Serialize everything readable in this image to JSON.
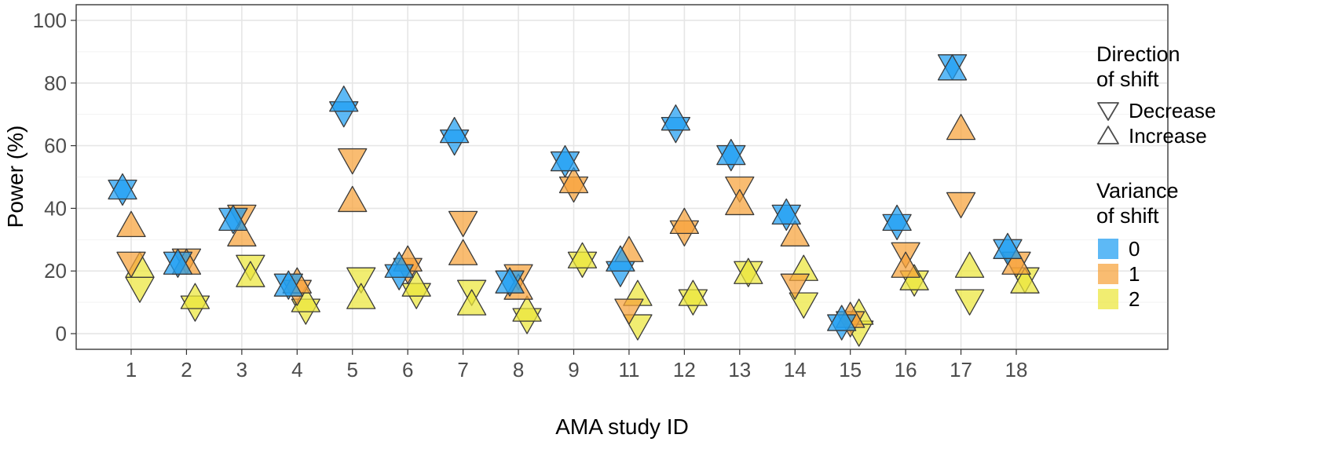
{
  "chart_data": {
    "type": "scatter",
    "xlabel": "AMA study ID",
    "ylabel": "Power (%)",
    "categories": [
      "1",
      "2",
      "3",
      "4",
      "5",
      "6",
      "7",
      "8",
      "9",
      "11",
      "12",
      "13",
      "14",
      "15",
      "16",
      "17",
      "18"
    ],
    "ylim": [
      -5,
      105
    ],
    "yticks": [
      0,
      20,
      40,
      60,
      80,
      100
    ],
    "grid": true,
    "legend_position": "right",
    "shape_legend": {
      "title": [
        "Direction",
        "of shift"
      ],
      "items": [
        {
          "label": "Decrease",
          "shape": "triangle-down"
        },
        {
          "label": "Increase",
          "shape": "triangle-up"
        }
      ]
    },
    "color_legend": {
      "title": [
        "Variance",
        "of shift"
      ],
      "items": [
        {
          "label": "0",
          "color": "#1f9ef2"
        },
        {
          "label": "1",
          "color": "#f7a23a"
        },
        {
          "label": "2",
          "color": "#ebe63a"
        }
      ]
    },
    "series": [
      {
        "variance": "0",
        "direction": "Decrease",
        "values": [
          46,
          23,
          37,
          16,
          71,
          19,
          62,
          17,
          55,
          20,
          66,
          57,
          38,
          3,
          35,
          86,
          27
        ]
      },
      {
        "variance": "0",
        "direction": "Increase",
        "values": [
          46,
          22,
          36,
          15,
          74,
          21,
          64,
          16,
          55,
          23,
          68,
          57,
          38,
          4,
          36,
          84,
          27
        ]
      },
      {
        "variance": "1",
        "direction": "Decrease",
        "values": [
          23,
          24,
          38,
          14,
          56,
          21,
          36,
          19,
          47,
          8,
          33,
          47,
          16,
          4,
          26,
          42,
          23
        ]
      },
      {
        "variance": "1",
        "direction": "Increase",
        "values": [
          34,
          22,
          31,
          16,
          42,
          23,
          25,
          14,
          48,
          26,
          35,
          41,
          31,
          5,
          21,
          65,
          22
        ]
      },
      {
        "variance": "2",
        "direction": "Decrease",
        "values": [
          15,
          9,
          22,
          8,
          18,
          13,
          14,
          5,
          23,
          3,
          11,
          20,
          10,
          1,
          17,
          11,
          18
        ]
      },
      {
        "variance": "2",
        "direction": "Increase",
        "values": [
          21,
          11,
          18,
          10,
          11,
          15,
          9,
          7,
          24,
          12,
          12,
          19,
          20,
          6,
          17,
          21,
          16
        ]
      }
    ]
  }
}
